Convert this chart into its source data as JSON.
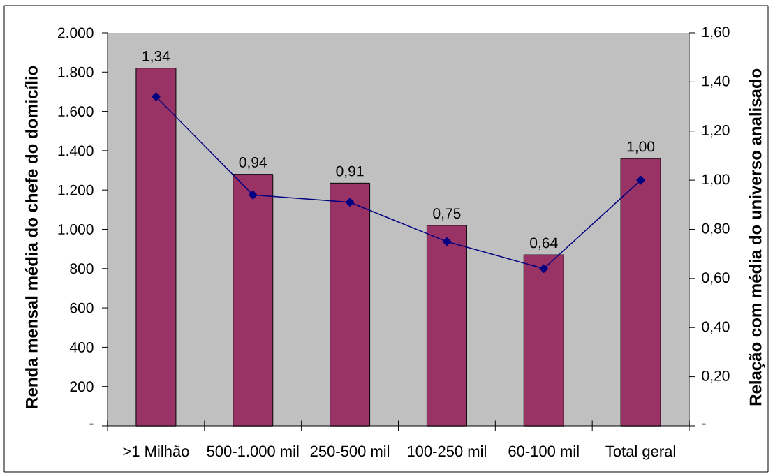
{
  "chart_data": {
    "type": "bar",
    "categories": [
      ">1 Milhão",
      "500-1.000 mil",
      "250-500 mil",
      "100-250 mil",
      "60-100 mil",
      "Total geral"
    ],
    "series": [
      {
        "color": "#993366",
        "values": [
          1820,
          1280,
          1235,
          1020,
          870,
          1360
        ]
      },
      {
        "type": "line",
        "axis": "y2",
        "color": "#000080",
        "values": [
          1.34,
          0.94,
          0.91,
          0.75,
          0.64,
          1.0
        ],
        "value_labels": [
          "1,34",
          "0,94",
          "0,91",
          "0,75",
          "0,64",
          "1,00"
        ]
      }
    ],
    "marker": "diamond",
    "ylabel": "Renda mensal média do chefe do domicílio",
    "y2label": "Relação com média do universo analisado",
    "ylim": [
      0,
      2000
    ],
    "yticks": [
      {
        "value": 0,
        "label": "-"
      },
      200,
      400,
      600,
      800,
      {
        "value": 1000,
        "label": "1.000"
      },
      {
        "value": 1200,
        "label": "1.200"
      },
      {
        "value": 1400,
        "label": "1.400"
      },
      {
        "value": 1600,
        "label": "1.600"
      },
      {
        "value": 1800,
        "label": "1.800"
      },
      {
        "value": 2000,
        "label": "2.000"
      }
    ],
    "y2lim": [
      0,
      1.6
    ],
    "y2ticks": [
      {
        "value": 0,
        "label": "-"
      },
      {
        "value": 0.2,
        "label": "0,20"
      },
      {
        "value": 0.4,
        "label": "0,40"
      },
      {
        "value": 0.6,
        "label": "0,60"
      },
      {
        "value": 0.8,
        "label": "0,80"
      },
      {
        "value": 1.0,
        "label": "1,00"
      },
      {
        "value": 1.2,
        "label": "1,20"
      },
      {
        "value": 1.4,
        "label": "1,40"
      },
      {
        "value": 1.6,
        "label": "1,60"
      }
    ]
  }
}
